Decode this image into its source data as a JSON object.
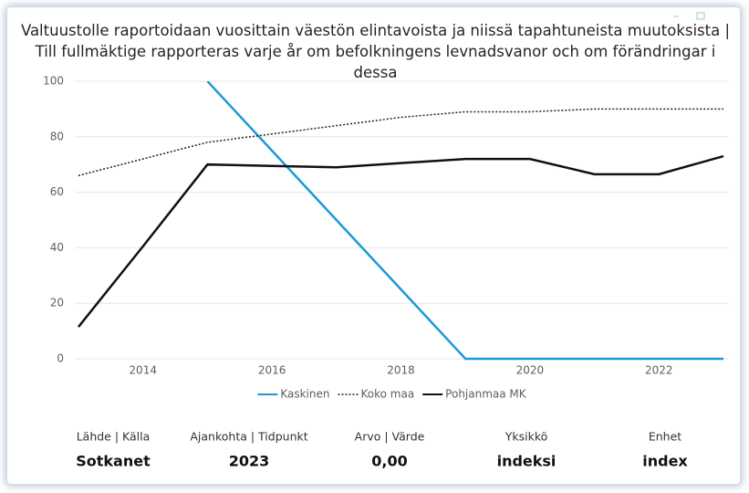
{
  "chart_data": {
    "type": "line",
    "title": "Valtuustolle raportoidaan vuosittain väestön elintavoista ja niissä tapahtuneista muutoksista | Till fullmäktige rapporteras varje år om befolkningens levnadsvanor och om förändringar i dessa",
    "x": [
      2013,
      2014,
      2015,
      2016,
      2017,
      2018,
      2019,
      2020,
      2021,
      2022,
      2023
    ],
    "xlim": [
      2013,
      2023
    ],
    "xticks": [
      2014,
      2016,
      2018,
      2020,
      2022
    ],
    "ylim": [
      0,
      100
    ],
    "yticks": [
      0,
      20,
      40,
      60,
      80,
      100
    ],
    "grid": true,
    "legend": "bottom",
    "series": [
      {
        "name": "Kaskinen",
        "color": "#1c9ad6",
        "dash": "solid",
        "values": [
          null,
          null,
          100,
          75,
          50,
          25,
          0,
          0,
          0,
          0,
          0
        ]
      },
      {
        "name": "Koko maa",
        "color": "#222222",
        "dash": "dotted",
        "values": [
          66,
          72,
          78,
          81,
          84,
          87,
          89,
          89,
          90,
          90,
          90
        ]
      },
      {
        "name": "Pohjanmaa MK",
        "color": "#111111",
        "dash": "solid",
        "values": [
          11.5,
          40.5,
          70,
          69.5,
          69,
          70.5,
          72,
          72,
          66.5,
          66.5,
          73
        ]
      }
    ]
  },
  "info": [
    {
      "label": "Lähde | Källa",
      "value": "Sotkanet"
    },
    {
      "label": "Ajankohta | Tidpunkt",
      "value": "2023"
    },
    {
      "label": "Arvo | Värde",
      "value": "0,00"
    },
    {
      "label": "Yksikkö",
      "value": "indeksi"
    },
    {
      "label": "Enhet",
      "value": "index"
    }
  ]
}
